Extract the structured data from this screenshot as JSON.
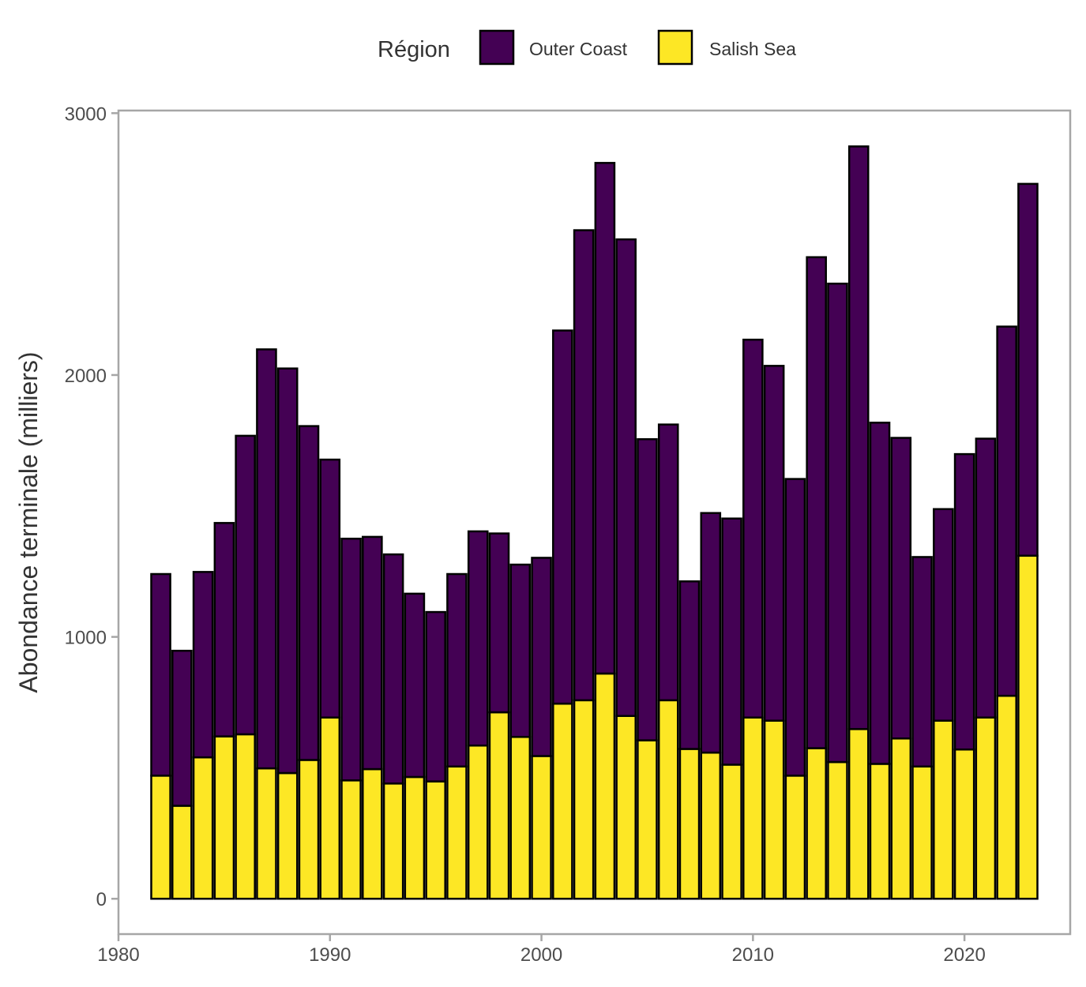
{
  "chart_data": {
    "type": "bar",
    "stacked": true,
    "title": "",
    "xlabel": "",
    "ylabel": "Abondance terminale (milliers)",
    "legend": {
      "title": "Région",
      "position": "top",
      "entries": [
        "Outer Coast",
        "Salish Sea"
      ]
    },
    "xlim": [
      1980,
      2025
    ],
    "ylim": [
      -135,
      3010
    ],
    "xticks": [
      1980,
      1990,
      2000,
      2010,
      2020
    ],
    "yticks": [
      0,
      1000,
      2000,
      3000
    ],
    "grid": false,
    "x": [
      1982,
      1983,
      1984,
      1985,
      1986,
      1987,
      1988,
      1989,
      1990,
      1991,
      1992,
      1993,
      1994,
      1995,
      1996,
      1997,
      1998,
      1999,
      2000,
      2001,
      2002,
      2003,
      2004,
      2005,
      2006,
      2007,
      2008,
      2009,
      2010,
      2011,
      2012,
      2013,
      2014,
      2015,
      2016,
      2017,
      2018,
      2019,
      2020,
      2021,
      2022,
      2023
    ],
    "series": [
      {
        "name": "Salish Sea",
        "color": "#FDE725",
        "values": [
          470,
          355,
          540,
          620,
          628,
          498,
          480,
          530,
          692,
          452,
          495,
          440,
          465,
          448,
          505,
          585,
          712,
          618,
          545,
          745,
          758,
          860,
          698,
          605,
          758,
          572,
          558,
          512,
          692,
          680,
          470,
          575,
          522,
          648,
          515,
          612,
          505,
          680,
          570,
          692,
          775,
          1310
        ]
      },
      {
        "name": "Outer Coast",
        "color": "#440154",
        "values": [
          770,
          592,
          708,
          815,
          1140,
          1600,
          1545,
          1275,
          985,
          923,
          887,
          875,
          700,
          647,
          735,
          818,
          683,
          658,
          757,
          1425,
          1795,
          1950,
          1820,
          1150,
          1053,
          640,
          915,
          940,
          1443,
          1355,
          1133,
          1875,
          1827,
          2225,
          1303,
          1148,
          800,
          808,
          1128,
          1065,
          1410,
          1420
        ]
      }
    ]
  }
}
